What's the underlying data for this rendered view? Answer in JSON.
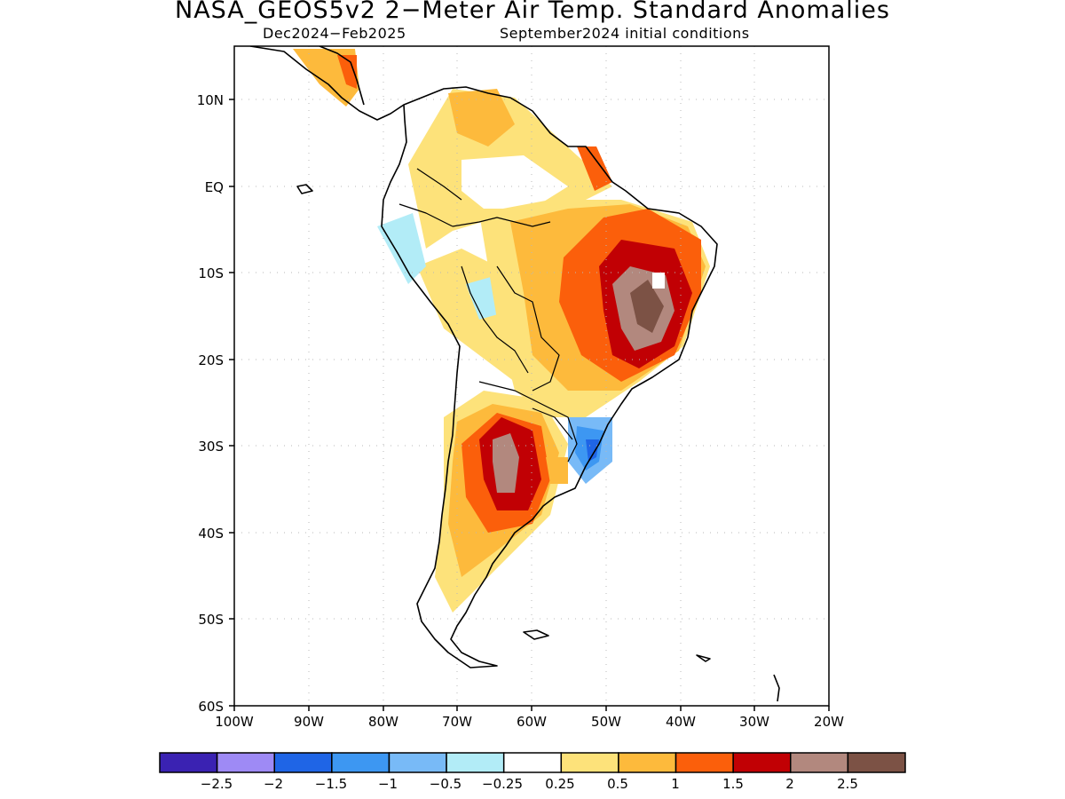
{
  "title": "NASA_GEOS5v2 2−Meter Air Temp. Standard Anomalies",
  "subtitle_left": "Dec2024−Feb2025",
  "subtitle_right": "September2024 initial conditions",
  "map": {
    "region": "South America",
    "lat_range": [
      -60,
      16
    ],
    "lon_range": [
      -100,
      -20
    ],
    "lat_ticks": [
      {
        "value": 10,
        "label": "10N"
      },
      {
        "value": 0,
        "label": "EQ"
      },
      {
        "value": -10,
        "label": "10S"
      },
      {
        "value": -20,
        "label": "20S"
      },
      {
        "value": -30,
        "label": "30S"
      },
      {
        "value": -40,
        "label": "40S"
      },
      {
        "value": -50,
        "label": "50S"
      },
      {
        "value": -60,
        "label": "60S"
      }
    ],
    "lon_ticks": [
      {
        "value": -100,
        "label": "100W"
      },
      {
        "value": -90,
        "label": "90W"
      },
      {
        "value": -80,
        "label": "80W"
      },
      {
        "value": -70,
        "label": "70W"
      },
      {
        "value": -60,
        "label": "60W"
      },
      {
        "value": -50,
        "label": "50W"
      },
      {
        "value": -40,
        "label": "40W"
      },
      {
        "value": -30,
        "label": "30W"
      },
      {
        "value": -20,
        "label": "20W"
      }
    ],
    "grid": "dotted"
  },
  "colorbar": {
    "colors": [
      "#3a22b2",
      "#9e8af5",
      "#1f65e6",
      "#3d97f2",
      "#78baf7",
      "#b2ecf7",
      "#ffffff",
      "#fde27a",
      "#fdba3c",
      "#fb5f0b",
      "#c10004",
      "#b2887e",
      "#7c5245"
    ],
    "labels": [
      "−2.5",
      "−2",
      "−1.5",
      "−1",
      "−0.5",
      "−0.25",
      "0.25",
      "0.5",
      "1",
      "1.5",
      "2",
      "2.5"
    ]
  }
}
